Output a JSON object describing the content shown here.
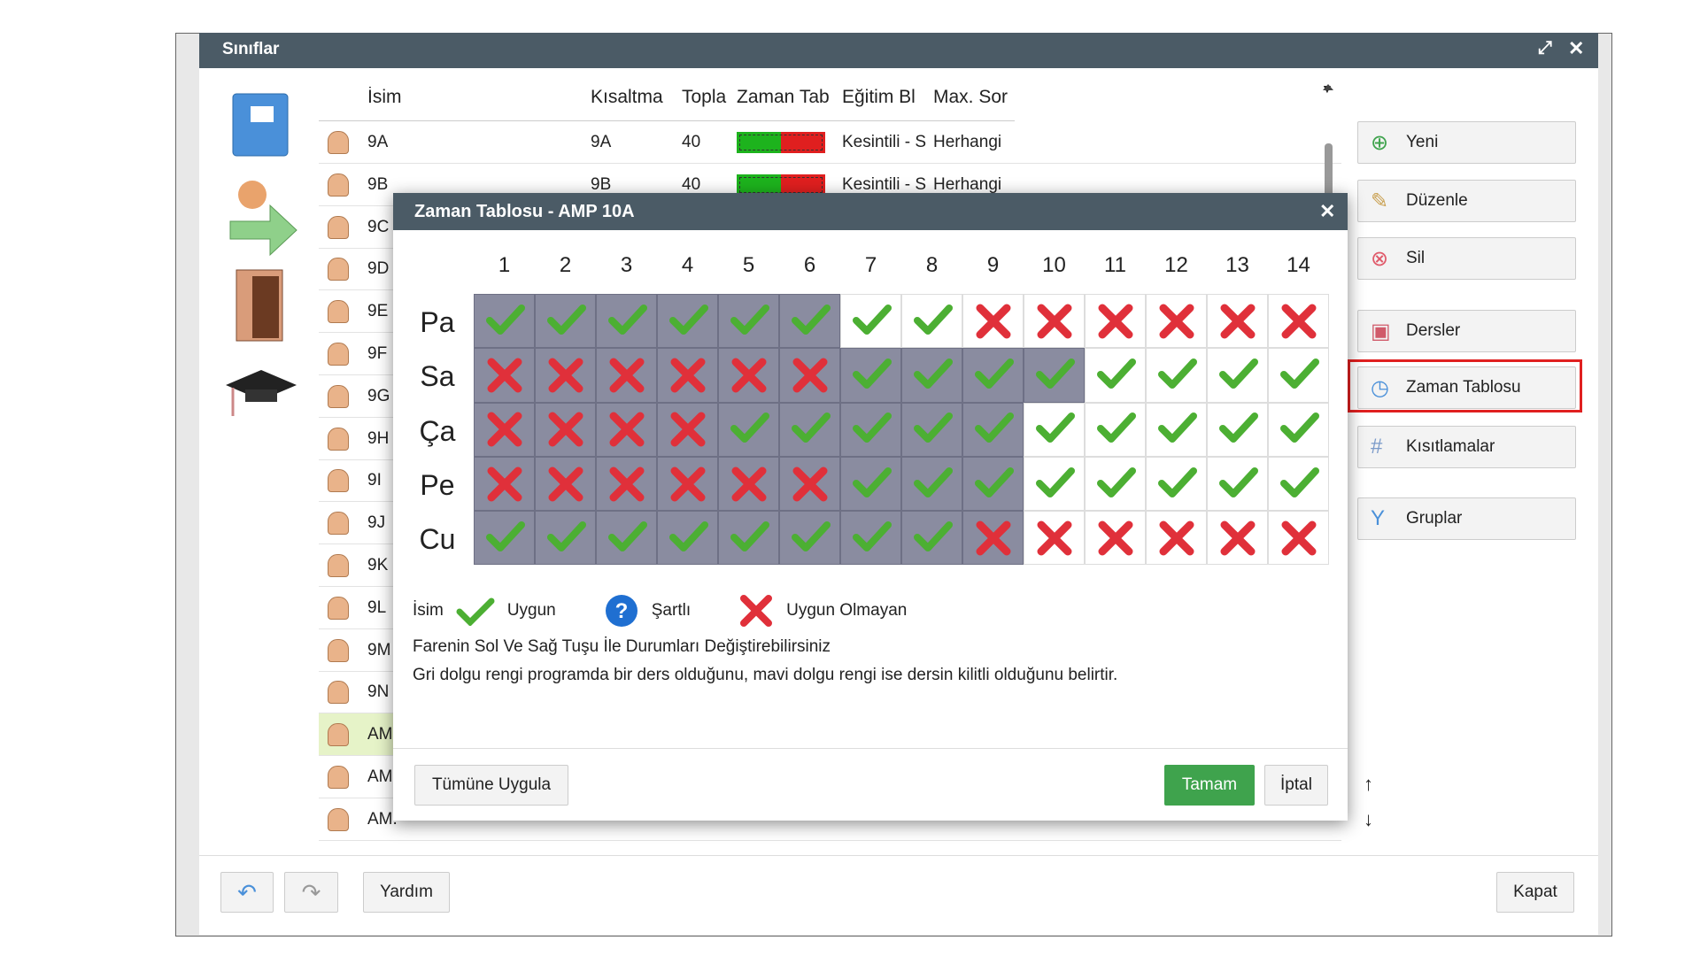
{
  "window": {
    "title": "Sınıflar"
  },
  "table": {
    "headers": [
      "İsim",
      "Kısaltma",
      "Topla",
      "Zaman Tab",
      "Eğitim Bl",
      "Max. Sor"
    ],
    "rows": [
      {
        "name": "9A",
        "short": "9A",
        "total": "40",
        "block": "Kesintili - S",
        "max": "Herhangi"
      },
      {
        "name": "9B",
        "short": "9B",
        "total": "40",
        "block": "Kesintili - S",
        "max": "Herhangi"
      },
      {
        "name": "9C"
      },
      {
        "name": "9D"
      },
      {
        "name": "9E"
      },
      {
        "name": "9F"
      },
      {
        "name": "9G"
      },
      {
        "name": "9H"
      },
      {
        "name": "9I"
      },
      {
        "name": "9J"
      },
      {
        "name": "9K"
      },
      {
        "name": "9L"
      },
      {
        "name": "9M"
      },
      {
        "name": "9N"
      },
      {
        "name": "AM"
      },
      {
        "name": "AM"
      },
      {
        "name": "AM."
      }
    ]
  },
  "side_buttons": [
    "Yeni",
    "Düzenle",
    "Sil",
    "Dersler",
    "Zaman Tablosu",
    "Kısıtlamalar",
    "Gruplar"
  ],
  "footer": {
    "help": "Yardım",
    "close": "Kapat"
  },
  "dialog": {
    "title": "Zaman Tablosu - AMP 10A",
    "columns": [
      "1",
      "2",
      "3",
      "4",
      "5",
      "6",
      "7",
      "8",
      "9",
      "10",
      "11",
      "12",
      "13",
      "14"
    ],
    "days": [
      {
        "label": "Pa",
        "status": "vvvvvvvvxxxxxx",
        "shaded": 6
      },
      {
        "label": "Sa",
        "status": "xxxxxxvvvvvvvv",
        "shaded": 10
      },
      {
        "label": "Ça",
        "status": "xxxxvvvvvvvvvv",
        "shaded": 9
      },
      {
        "label": "Pe",
        "status": "xxxxxxvvvvvvvv",
        "shaded": 9
      },
      {
        "label": "Cu",
        "status": "vvvvvvvvxxxxxx",
        "shaded": 9
      }
    ],
    "legend": {
      "name": "İsim",
      "ok": "Uygun",
      "conditional": "Şartlı",
      "no": "Uygun Olmayan"
    },
    "notes": [
      "Farenin Sol Ve Sağ Tuşu İle Durumları Değiştirebilirsiniz",
      "Gri dolgu rengi programda bir ders olduğunu, mavi dolgu rengi ise dersin kilitli olduğunu belirtir."
    ],
    "buttons": {
      "apply_all": "Tümüne Uygula",
      "ok": "Tamam",
      "cancel": "İptal"
    }
  }
}
